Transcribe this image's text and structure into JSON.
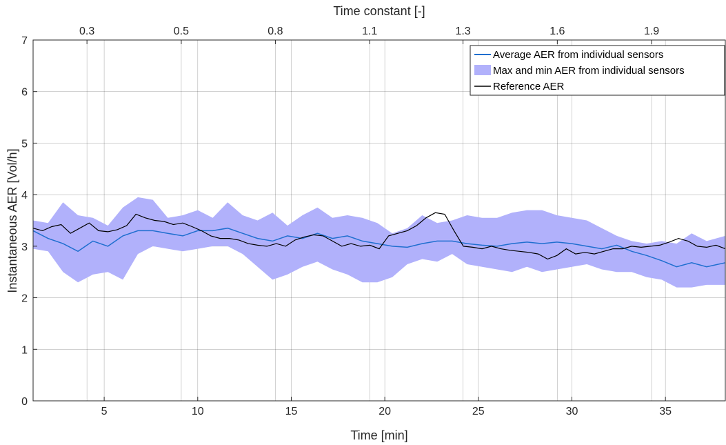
{
  "chart_data": {
    "type": "line",
    "xlabel": "Time [min]",
    "ylabel": "Instantaneous AER [Vol/h]",
    "top_xlabel": "Time constant [-]",
    "xlim": [
      1.2,
      38.2
    ],
    "ylim": [
      0,
      7
    ],
    "x_ticks": [
      5,
      10,
      15,
      20,
      25,
      30,
      35
    ],
    "x_tick_labels": [
      "5",
      "10",
      "15",
      "20",
      "25",
      "30",
      "35"
    ],
    "y_ticks": [
      0,
      1,
      2,
      3,
      4,
      5,
      6,
      7
    ],
    "y_tick_labels": [
      "0",
      "1",
      "2",
      "3",
      "4",
      "5",
      "6",
      "7"
    ],
    "top_ticks": [
      4.08,
      9.12,
      14.15,
      19.19,
      24.18,
      29.22,
      34.26
    ],
    "top_tick_labels": [
      "0.3",
      "0.5",
      "0.8",
      "1.1",
      "1.3",
      "1.6",
      "1.9"
    ],
    "grid": true,
    "legend_position": "top-right",
    "colors": {
      "average": "#1f6fcf",
      "band": "#b1b1fb",
      "reference": "#000000",
      "grid": "#262626"
    },
    "series": [
      {
        "name": "Average AER from individual sensors",
        "kind": "line",
        "x": [
          1.2,
          2.0,
          2.8,
          3.6,
          4.4,
          5.2,
          6.0,
          6.8,
          7.6,
          8.4,
          9.2,
          10.0,
          10.8,
          11.6,
          12.4,
          13.2,
          14.0,
          14.8,
          15.6,
          16.4,
          17.2,
          18.0,
          18.8,
          19.6,
          20.4,
          21.2,
          22.0,
          22.8,
          23.6,
          24.4,
          25.2,
          26.0,
          26.8,
          27.6,
          28.4,
          29.2,
          30.0,
          30.8,
          31.6,
          32.4,
          33.2,
          34.0,
          34.8,
          35.6,
          36.4,
          37.2,
          38.2
        ],
        "y": [
          3.3,
          3.15,
          3.05,
          2.9,
          3.1,
          3.0,
          3.2,
          3.3,
          3.3,
          3.25,
          3.2,
          3.3,
          3.3,
          3.35,
          3.25,
          3.15,
          3.1,
          3.2,
          3.15,
          3.25,
          3.15,
          3.2,
          3.1,
          3.05,
          3.0,
          2.98,
          3.05,
          3.1,
          3.1,
          3.05,
          3.02,
          3.0,
          3.05,
          3.08,
          3.05,
          3.08,
          3.05,
          3.0,
          2.95,
          3.02,
          2.9,
          2.82,
          2.72,
          2.6,
          2.68,
          2.6,
          2.68
        ]
      },
      {
        "name": "Max and min AER from individual sensors",
        "kind": "band",
        "x": [
          1.2,
          2.0,
          2.8,
          3.6,
          4.4,
          5.2,
          6.0,
          6.8,
          7.6,
          8.4,
          9.2,
          10.0,
          10.8,
          11.6,
          12.4,
          13.2,
          14.0,
          14.8,
          15.6,
          16.4,
          17.2,
          18.0,
          18.8,
          19.6,
          20.4,
          21.2,
          22.0,
          22.8,
          23.6,
          24.4,
          25.2,
          26.0,
          26.8,
          27.6,
          28.4,
          29.2,
          30.0,
          30.8,
          31.6,
          32.4,
          33.2,
          34.0,
          34.8,
          35.6,
          36.4,
          37.2,
          38.2
        ],
        "upper": [
          3.5,
          3.45,
          3.85,
          3.6,
          3.55,
          3.4,
          3.75,
          3.95,
          3.9,
          3.55,
          3.6,
          3.7,
          3.55,
          3.85,
          3.6,
          3.5,
          3.65,
          3.4,
          3.6,
          3.75,
          3.55,
          3.6,
          3.55,
          3.45,
          3.25,
          3.35,
          3.6,
          3.45,
          3.5,
          3.6,
          3.55,
          3.55,
          3.65,
          3.7,
          3.7,
          3.6,
          3.55,
          3.5,
          3.35,
          3.2,
          3.1,
          3.05,
          3.1,
          3.05,
          3.25,
          3.1,
          3.2
        ],
        "lower": [
          2.95,
          2.9,
          2.5,
          2.3,
          2.45,
          2.5,
          2.35,
          2.85,
          3.0,
          2.95,
          2.9,
          2.95,
          3.0,
          3.0,
          2.85,
          2.6,
          2.35,
          2.45,
          2.6,
          2.7,
          2.55,
          2.45,
          2.3,
          2.3,
          2.4,
          2.65,
          2.75,
          2.7,
          2.85,
          2.65,
          2.6,
          2.55,
          2.5,
          2.6,
          2.5,
          2.55,
          2.6,
          2.65,
          2.55,
          2.5,
          2.5,
          2.4,
          2.35,
          2.2,
          2.2,
          2.25,
          2.25
        ]
      },
      {
        "name": "Reference AER",
        "kind": "line",
        "x": [
          1.2,
          1.7,
          2.2,
          2.7,
          3.2,
          3.7,
          4.2,
          4.7,
          5.2,
          5.7,
          6.2,
          6.7,
          7.2,
          7.7,
          8.2,
          8.7,
          9.2,
          9.7,
          10.2,
          10.7,
          11.2,
          11.7,
          12.2,
          12.7,
          13.2,
          13.7,
          14.2,
          14.7,
          15.2,
          15.7,
          16.2,
          16.7,
          17.2,
          17.7,
          18.2,
          18.7,
          19.2,
          19.7,
          20.2,
          20.7,
          21.2,
          21.7,
          22.2,
          22.7,
          23.2,
          23.7,
          24.2,
          24.7,
          25.2,
          25.7,
          26.2,
          26.7,
          27.2,
          27.7,
          28.2,
          28.7,
          29.2,
          29.7,
          30.2,
          30.7,
          31.2,
          31.7,
          32.2,
          32.7,
          33.2,
          33.7,
          34.2,
          34.7,
          35.2,
          35.7,
          36.2,
          36.7,
          37.2,
          37.7,
          38.2
        ],
        "y": [
          3.35,
          3.3,
          3.38,
          3.42,
          3.25,
          3.35,
          3.45,
          3.3,
          3.28,
          3.32,
          3.4,
          3.62,
          3.55,
          3.5,
          3.48,
          3.42,
          3.45,
          3.38,
          3.3,
          3.2,
          3.15,
          3.15,
          3.12,
          3.05,
          3.02,
          3.0,
          3.05,
          3.0,
          3.12,
          3.18,
          3.22,
          3.2,
          3.1,
          3.0,
          3.05,
          3.0,
          3.02,
          2.95,
          3.2,
          3.25,
          3.3,
          3.4,
          3.55,
          3.65,
          3.62,
          3.3,
          3.0,
          2.98,
          2.95,
          3.0,
          2.95,
          2.92,
          2.9,
          2.88,
          2.85,
          2.75,
          2.82,
          2.95,
          2.85,
          2.88,
          2.85,
          2.9,
          2.95,
          2.95,
          3.0,
          2.98,
          3.0,
          3.02,
          3.08,
          3.15,
          3.1,
          3.0,
          2.98,
          3.02,
          2.95
        ]
      }
    ]
  }
}
